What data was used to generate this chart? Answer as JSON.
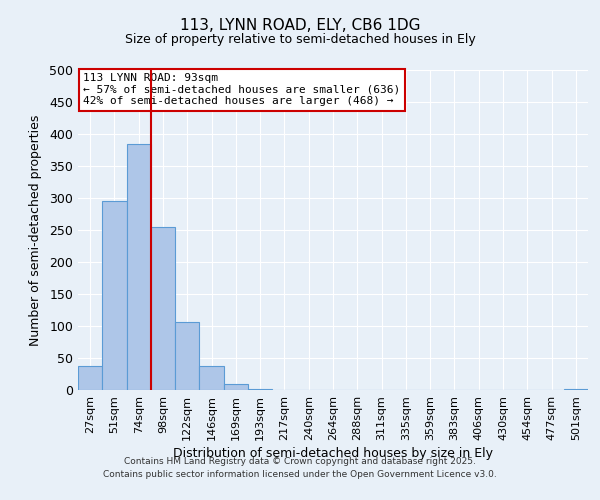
{
  "title": "113, LYNN ROAD, ELY, CB6 1DG",
  "subtitle": "Size of property relative to semi-detached houses in Ely",
  "xlabel": "Distribution of semi-detached houses by size in Ely",
  "ylabel": "Number of semi-detached properties",
  "bar_labels": [
    "27sqm",
    "51sqm",
    "74sqm",
    "98sqm",
    "122sqm",
    "146sqm",
    "169sqm",
    "193sqm",
    "217sqm",
    "240sqm",
    "264sqm",
    "288sqm",
    "311sqm",
    "335sqm",
    "359sqm",
    "383sqm",
    "406sqm",
    "430sqm",
    "454sqm",
    "477sqm",
    "501sqm"
  ],
  "bar_values": [
    37,
    296,
    384,
    255,
    107,
    37,
    9,
    1,
    0,
    0,
    0,
    0,
    0,
    0,
    0,
    0,
    0,
    0,
    0,
    0,
    2
  ],
  "bar_color": "#aec6e8",
  "bar_edge_color": "#5b9bd5",
  "vline_pos": 2.5,
  "vline_color": "#cc0000",
  "annotation_title": "113 LYNN ROAD: 93sqm",
  "annotation_line1": "← 57% of semi-detached houses are smaller (636)",
  "annotation_line2": "42% of semi-detached houses are larger (468) →",
  "annotation_box_color": "#ffffff",
  "annotation_box_edge": "#cc0000",
  "ylim": [
    0,
    500
  ],
  "yticks": [
    0,
    50,
    100,
    150,
    200,
    250,
    300,
    350,
    400,
    450,
    500
  ],
  "background_color": "#e8f0f8",
  "footer_line1": "Contains HM Land Registry data © Crown copyright and database right 2025.",
  "footer_line2": "Contains public sector information licensed under the Open Government Licence v3.0."
}
